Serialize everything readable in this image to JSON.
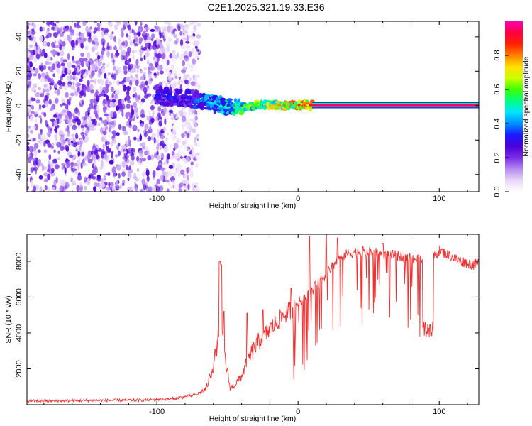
{
  "chart_data": [
    {
      "type": "heatmap",
      "title": "C2E1.2025.321.19.33.E36",
      "xlabel": "Height of straight line (km)",
      "ylabel": "Frequency (Hz)",
      "xlim": [
        -192,
        128
      ],
      "ylim": [
        -50,
        49
      ],
      "xticks": [
        -100,
        0,
        100
      ],
      "yticks": [
        -40,
        -20,
        0,
        20,
        40
      ],
      "colorbar": {
        "label": "Normalized spectral amplitude",
        "range": [
          0,
          1
        ],
        "ticks": [
          "0.0",
          "0.2",
          "0.4",
          "0.6",
          "0.8"
        ]
      },
      "colormap_stops": [
        "#ffffff",
        "#e7d5f7",
        "#b48cf0",
        "#7b2be8",
        "#4b00d8",
        "#1a1aff",
        "#0090ff",
        "#00e5ff",
        "#00ff80",
        "#40ff00",
        "#ccff00",
        "#ffe000",
        "#ff8000",
        "#ff2000",
        "#ff0040",
        "#ff00b0"
      ],
      "carrier": {
        "freq_hz": 0.3,
        "amplitude": 0.95,
        "x_from": 10,
        "x_to": 128
      },
      "signal_track": [
        {
          "x": -100,
          "f": 6.0,
          "a": 0.32
        },
        {
          "x": -90,
          "f": 5.0,
          "a": 0.34
        },
        {
          "x": -80,
          "f": 4.5,
          "a": 0.3
        },
        {
          "x": -70,
          "f": 3.0,
          "a": 0.4
        },
        {
          "x": -60,
          "f": 1.5,
          "a": 0.48
        },
        {
          "x": -50,
          "f": -1.0,
          "a": 0.5
        },
        {
          "x": -40,
          "f": -1.0,
          "a": 0.62
        },
        {
          "x": -30,
          "f": 0.5,
          "a": 0.66
        },
        {
          "x": -20,
          "f": 0.5,
          "a": 0.74
        },
        {
          "x": -10,
          "f": 0.2,
          "a": 0.82
        },
        {
          "x": 0,
          "f": 0.3,
          "a": 0.88
        },
        {
          "x": 10,
          "f": 0.3,
          "a": 0.92
        }
      ],
      "noise_region_x": [
        -192,
        -70
      ]
    },
    {
      "type": "line",
      "xlabel": "Height of straight line (km)",
      "ylabel": "SNR (10 * v/v)",
      "xlim": [
        -192,
        128
      ],
      "ylim": [
        0,
        9500
      ],
      "xticks": [
        -100,
        0,
        100
      ],
      "yticks": [
        2000,
        4000,
        6000,
        8000
      ],
      "color": "#f03030",
      "series": [
        {
          "name": "SNR",
          "x": [
            -192,
            -150,
            -110,
            -90,
            -82,
            -72,
            -65,
            -60,
            -57,
            -55,
            -53,
            -51,
            -48,
            -45,
            -40,
            -36,
            -32,
            -28,
            -24,
            -20,
            -15,
            -10,
            -5,
            0,
            5,
            10,
            15,
            20,
            25,
            30,
            35,
            40,
            45,
            50,
            55,
            60,
            65,
            70,
            75,
            80,
            85,
            88,
            90,
            93,
            96,
            100,
            105,
            110,
            115,
            120,
            125,
            128
          ],
          "base": [
            200,
            230,
            260,
            320,
            420,
            550,
            900,
            2200,
            3500,
            4200,
            3300,
            2200,
            900,
            1100,
            1600,
            2400,
            3000,
            3500,
            3800,
            4200,
            4600,
            5000,
            5300,
            5700,
            6000,
            6400,
            6800,
            7300,
            7800,
            8200,
            8400,
            8500,
            8550,
            8500,
            8450,
            8400,
            8350,
            8300,
            8250,
            8200,
            8100,
            8000,
            4800,
            4700,
            8200,
            8600,
            8400,
            8200,
            8000,
            7900,
            7800,
            7900
          ],
          "spikes": [
            {
              "x": -55.5,
              "y": 8000
            },
            {
              "x": -54.5,
              "y": 7800
            },
            {
              "x": -52.5,
              "y": 5200
            },
            {
              "x": -36,
              "y": 5100
            },
            {
              "x": -25,
              "y": 5300
            },
            {
              "x": -5,
              "y": 6500
            },
            {
              "x": 8,
              "y": 9400
            },
            {
              "x": 20,
              "y": 9400
            },
            {
              "x": 28,
              "y": 9300
            },
            {
              "x": 60,
              "y": 9000
            }
          ]
        }
      ]
    }
  ]
}
